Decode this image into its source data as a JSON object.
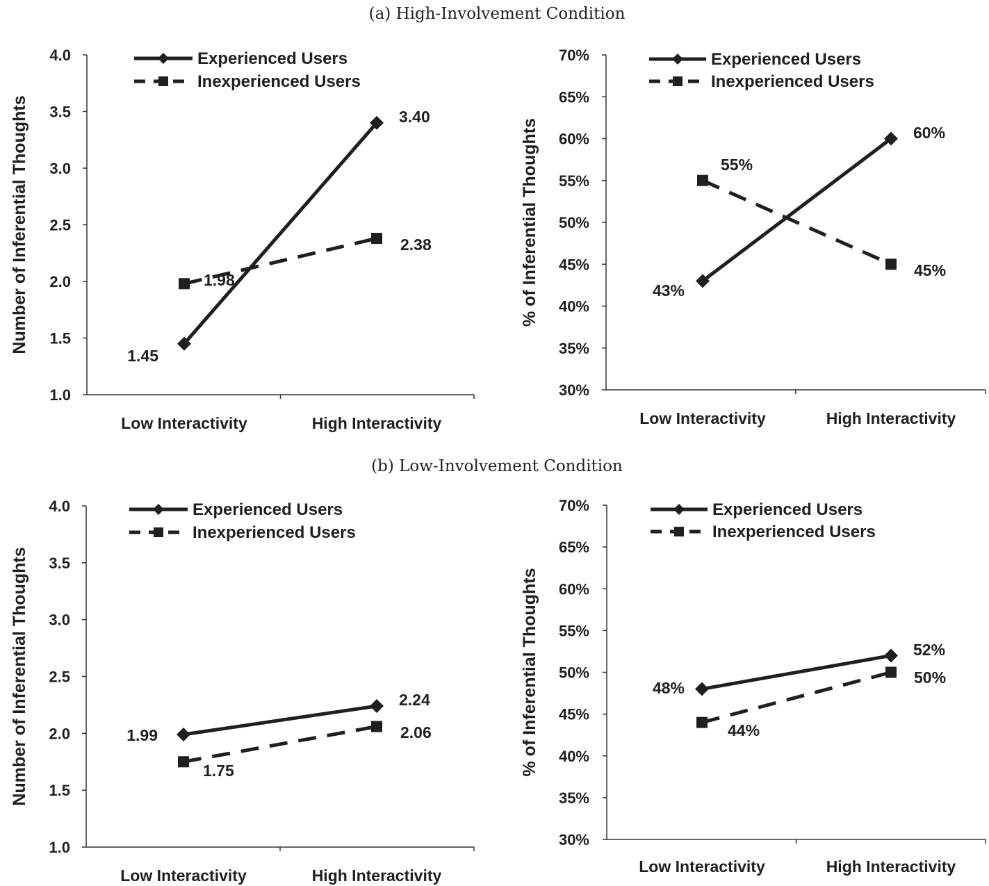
{
  "sections": [
    {
      "title": "(a) High-Involvement Condition"
    },
    {
      "title": "(b) Low-Involvement Condition"
    }
  ],
  "chart_data": [
    {
      "type": "line",
      "section": "(a) High-Involvement Condition",
      "categories": [
        "Low Interactivity",
        "High Interactivity"
      ],
      "ylabel": "Number of Inferential Thoughts",
      "ylim": [
        1.0,
        4.0
      ],
      "yticks": [
        "1.0",
        "1.5",
        "2.0",
        "2.5",
        "3.0",
        "3.5",
        "4.0"
      ],
      "legend_position": "top-left",
      "series": [
        {
          "name": "Experienced Users",
          "style": "solid",
          "marker": "diamond",
          "values": [
            1.45,
            3.4
          ],
          "labels": [
            "1.45",
            "3.40"
          ]
        },
        {
          "name": "Inexperienced Users",
          "style": "dashed",
          "marker": "square",
          "values": [
            1.98,
            2.38
          ],
          "labels": [
            "1.98",
            "2.38"
          ]
        }
      ]
    },
    {
      "type": "line",
      "section": "(a) High-Involvement Condition",
      "categories": [
        "Low Interactivity",
        "High Interactivity"
      ],
      "ylabel": "% of Inferential Thoughts",
      "ylim": [
        30,
        70
      ],
      "yticks": [
        "30%",
        "35%",
        "40%",
        "45%",
        "50%",
        "55%",
        "60%",
        "65%",
        "70%"
      ],
      "legend_position": "top-left",
      "series": [
        {
          "name": "Experienced Users",
          "style": "solid",
          "marker": "diamond",
          "values": [
            43,
            60
          ],
          "labels": [
            "43%",
            "60%"
          ]
        },
        {
          "name": "Inexperienced Users",
          "style": "dashed",
          "marker": "square",
          "values": [
            55,
            45
          ],
          "labels": [
            "55%",
            "45%"
          ]
        }
      ]
    },
    {
      "type": "line",
      "section": "(b) Low-Involvement Condition",
      "categories": [
        "Low Interactivity",
        "High Interactivity"
      ],
      "ylabel": "Number of Inferential Thoughts",
      "ylim": [
        1.0,
        4.0
      ],
      "yticks": [
        "1.0",
        "1.5",
        "2.0",
        "2.5",
        "3.0",
        "3.5",
        "4.0"
      ],
      "legend_position": "top-left",
      "series": [
        {
          "name": "Experienced Users",
          "style": "solid",
          "marker": "diamond",
          "values": [
            1.99,
            2.24
          ],
          "labels": [
            "1.99",
            "2.24"
          ]
        },
        {
          "name": "Inexperienced Users",
          "style": "dashed",
          "marker": "square",
          "values": [
            1.75,
            2.06
          ],
          "labels": [
            "1.75",
            "2.06"
          ]
        }
      ]
    },
    {
      "type": "line",
      "section": "(b) Low-Involvement Condition",
      "categories": [
        "Low Interactivity",
        "High Interactivity"
      ],
      "ylabel": "% of Inferential Thoughts",
      "ylim": [
        30,
        70
      ],
      "yticks": [
        "30%",
        "35%",
        "40%",
        "45%",
        "50%",
        "55%",
        "60%",
        "65%",
        "70%"
      ],
      "legend_position": "top-left",
      "series": [
        {
          "name": "Experienced Users",
          "style": "solid",
          "marker": "diamond",
          "values": [
            48,
            52
          ],
          "labels": [
            "48%",
            "52%"
          ]
        },
        {
          "name": "Inexperienced Users",
          "style": "dashed",
          "marker": "square",
          "values": [
            44,
            50
          ],
          "labels": [
            "44%",
            "50%"
          ]
        }
      ]
    }
  ]
}
